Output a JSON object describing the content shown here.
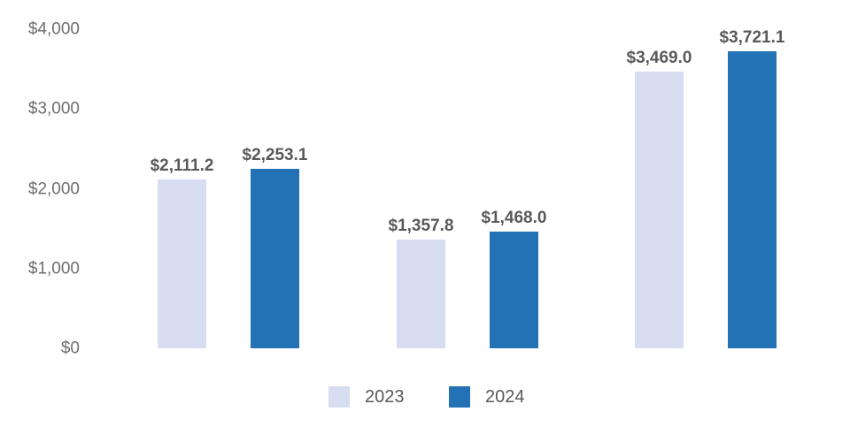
{
  "chart_data": {
    "type": "bar",
    "title": "",
    "xlabel": "",
    "ylabel": "",
    "categories": [
      "",
      "",
      ""
    ],
    "series": [
      {
        "name": "2023",
        "color": "#d8def1",
        "values": [
          2111.2,
          1357.8,
          3469.0
        ],
        "value_labels": [
          "$2,111.2",
          "$1,357.8",
          "$3,469.0"
        ]
      },
      {
        "name": "2024",
        "color": "#2272b5",
        "values": [
          2253.1,
          1468.0,
          3721.1
        ],
        "value_labels": [
          "$2,253.1",
          "$1,468.0",
          "$3,721.1"
        ]
      }
    ],
    "y_axis": {
      "min": 0,
      "max": 4000,
      "tick_values": [
        0,
        1000,
        2000,
        3000,
        4000
      ],
      "tick_labels": [
        "$0",
        "$1,000",
        "$2,000",
        "$3,000",
        "$4,000"
      ]
    },
    "legend": {
      "position": "bottom",
      "items": [
        "2023",
        "2024"
      ]
    },
    "grid": false
  },
  "colors": {
    "background": "#ffffff",
    "series_2023": "#d8def1",
    "series_2024": "#2272b5",
    "data_label": "#595959",
    "axis_label": "#6e6e6e",
    "legend_text": "#595959"
  }
}
